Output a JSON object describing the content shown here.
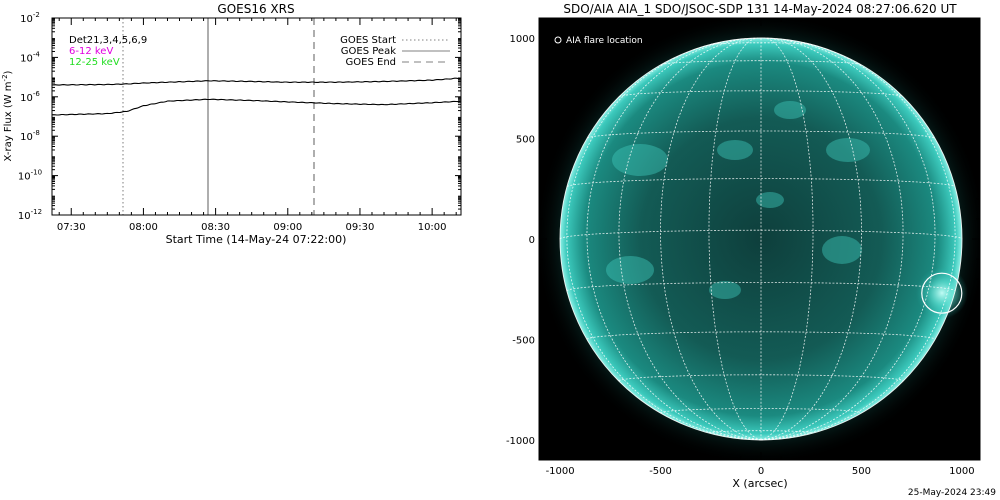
{
  "goes": {
    "title": "GOES16 XRS",
    "ylabel": "X-ray Flux (W m",
    "ylabel_exp": "-2",
    "ylabel_end": ")",
    "xlabel": "Start Time (14-May-24 07:22:00)",
    "channels": [
      {
        "label": "Det21,3,4,5,6,9",
        "color": "#000000"
      },
      {
        "label": "6-12 keV",
        "color": "#e000e0"
      },
      {
        "label": "12-25 keV",
        "color": "#22dd22"
      }
    ],
    "legend": [
      {
        "label": "GOES Start",
        "style": "dotted",
        "color": "#9a9a9a"
      },
      {
        "label": "GOES Peak",
        "style": "solid",
        "color": "#9a9a9a"
      },
      {
        "label": "GOES End",
        "style": "dashed",
        "color": "#9a9a9a"
      }
    ],
    "xticks": [
      {
        "label": "07:30",
        "min": 30
      },
      {
        "label": "08:00",
        "min": 60
      },
      {
        "label": "08:30",
        "min": 90
      },
      {
        "label": "09:00",
        "min": 120
      },
      {
        "label": "09:30",
        "min": 150
      },
      {
        "label": "10:00",
        "min": 180
      }
    ],
    "yticks": [
      {
        "base": "10",
        "exp": "-2",
        "log": -2
      },
      {
        "base": "10",
        "exp": "-4",
        "log": -4
      },
      {
        "base": "10",
        "exp": "-6",
        "log": -6
      },
      {
        "base": "10",
        "exp": "-8",
        "log": -8
      },
      {
        "base": "10",
        "exp": "-10",
        "log": -10
      },
      {
        "base": "10",
        "exp": "-12",
        "log": -12
      }
    ]
  },
  "chart_data": {
    "type": "line",
    "title": "GOES16 XRS",
    "xlabel": "Start Time (14-May-24 07:22:00)",
    "ylabel": "X-ray Flux (W m^-2)",
    "yscale": "log",
    "xlim": [
      "07:22",
      "10:12"
    ],
    "ylim": [
      1e-12,
      0.01
    ],
    "x": [
      "07:22",
      "07:45",
      "07:53",
      "08:00",
      "08:10",
      "08:27",
      "08:45",
      "09:00",
      "09:20",
      "09:40",
      "10:00",
      "10:12"
    ],
    "series": [
      {
        "name": "",
        "values": [
          4e-06,
          4.2e-06,
          4.5e-06,
          5e-06,
          5.5e-06,
          6.5e-06,
          6e-06,
          5.5e-06,
          5.5e-06,
          6e-06,
          7e-06,
          9e-06
        ]
      },
      {
        "name": "",
        "values": [
          1.2e-07,
          1.4e-07,
          1.8e-07,
          3.5e-07,
          6e-07,
          7.5e-07,
          6.5e-07,
          5.5e-07,
          4.5e-07,
          4e-07,
          5e-07,
          6e-07
        ]
      }
    ],
    "events": {
      "goes_start": "07:53",
      "goes_peak": "08:27",
      "goes_end": "09:07"
    },
    "legend_placement": "top-right",
    "grid": false
  },
  "aia": {
    "title": "SDO/AIA AIA_1 SDO/JSOC-SDP 131 14-May-2024 08:27:06.620 UT",
    "legend": "AIA flare location",
    "xlabel": "X (arcsec)",
    "ticks": [
      {
        "label": "-1000",
        "v": -1000
      },
      {
        "label": "-500",
        "v": -500
      },
      {
        "label": "0",
        "v": 0
      },
      {
        "label": "500",
        "v": 500
      },
      {
        "label": "1000",
        "v": 1000
      }
    ],
    "flare": {
      "x": 900,
      "y": -270
    },
    "sun_color": "#1fa9a0"
  },
  "footer": "25-May-2024 23:49"
}
